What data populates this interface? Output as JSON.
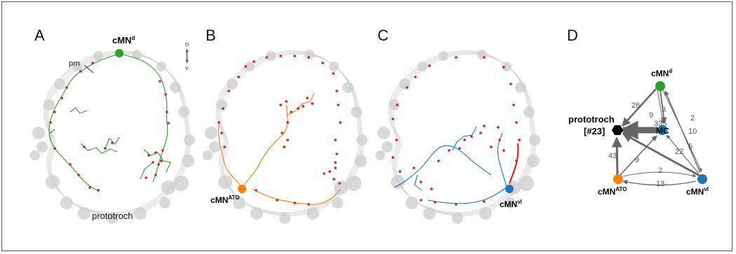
{
  "panels": {
    "a": {
      "letter": "A",
      "neuron_label": "cMN",
      "neuron_sup": "d",
      "prn_label": "prn",
      "prototroch_label": "prototroch",
      "axis_d": "D",
      "axis_v": "V",
      "color": "#2ca02c"
    },
    "b": {
      "letter": "B",
      "neuron_label": "cMN",
      "neuron_sup": "ATO",
      "color": "#ff7f0e"
    },
    "c": {
      "letter": "C",
      "neuron_label": "cMN",
      "neuron_sup": "vl",
      "color": "#1f77b4"
    },
    "d": {
      "letter": "D",
      "nodes": {
        "cmn_d": {
          "label": "cMN",
          "sup": "d",
          "color": "#2ca02c"
        },
        "prototroch": {
          "label_line1": "prototroch",
          "label_line2": "[#23]",
          "color": "#000000"
        },
        "mc": {
          "label": "MC",
          "color": "#1f77b4"
        },
        "cmn_ato": {
          "label": "cMN",
          "sup": "ATO",
          "color": "#ff7f0e"
        },
        "cmn_vl": {
          "label": "cMN",
          "sup": "vl",
          "color": "#1f77b4"
        }
      },
      "edge_labels": {
        "d_proto": "26",
        "d_mc_9": "9",
        "d_mc_3": "3",
        "d_vl_2": "2",
        "d_vl_10": "10",
        "mc_proto": "335",
        "ato_proto": "43",
        "ato_mc": "9",
        "vl_mc_22": "22",
        "vl_mc_5": "5",
        "ato_vl": "2",
        "vl_ato": "13"
      }
    }
  },
  "synapse_color": "#e8141c",
  "body_color": "#cfcfcf"
}
